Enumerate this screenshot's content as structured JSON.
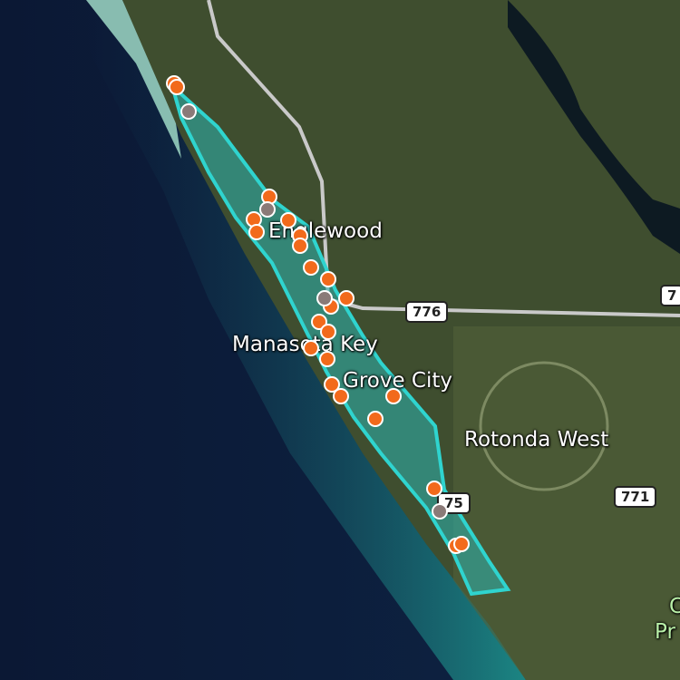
{
  "places": [
    {
      "name": "Englewood"
    },
    {
      "name": "Manasota Key"
    },
    {
      "name": "Grove City"
    },
    {
      "name": "Rotonda West"
    },
    {
      "name": "C"
    },
    {
      "name": "Pr"
    }
  ],
  "road_shields": [
    "776",
    "7",
    "771",
    "75"
  ],
  "colors": {
    "observation": "#f26a1b",
    "other": "#8a7a78",
    "region_outline": "#2fd4cf",
    "region_fill": "#2bb5b0"
  },
  "markers": [
    {
      "type": "observation",
      "lat_label": ""
    }
  ]
}
